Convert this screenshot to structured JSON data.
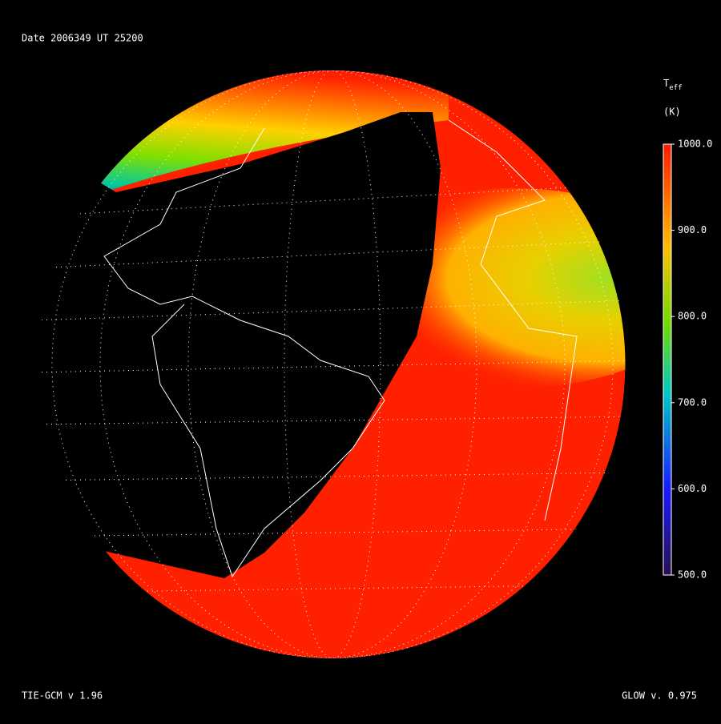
{
  "header": {
    "title": "Date 2006349  UT 25200"
  },
  "colorbar": {
    "title": "T",
    "title_sub": "eff",
    "unit": "(K)",
    "lim": [
      500,
      1000
    ],
    "ticks": [
      {
        "value": 1000,
        "label": "1000.0"
      },
      {
        "value": 900,
        "label": "900.0"
      },
      {
        "value": 800,
        "label": "800.0"
      },
      {
        "value": 700,
        "label": "700.0"
      },
      {
        "value": 600,
        "label": "600.0"
      },
      {
        "value": 500,
        "label": "500.0"
      }
    ]
  },
  "footer": {
    "left": "TIE-GCM v 1.96",
    "right": "GLOW v. 0.975"
  }
}
